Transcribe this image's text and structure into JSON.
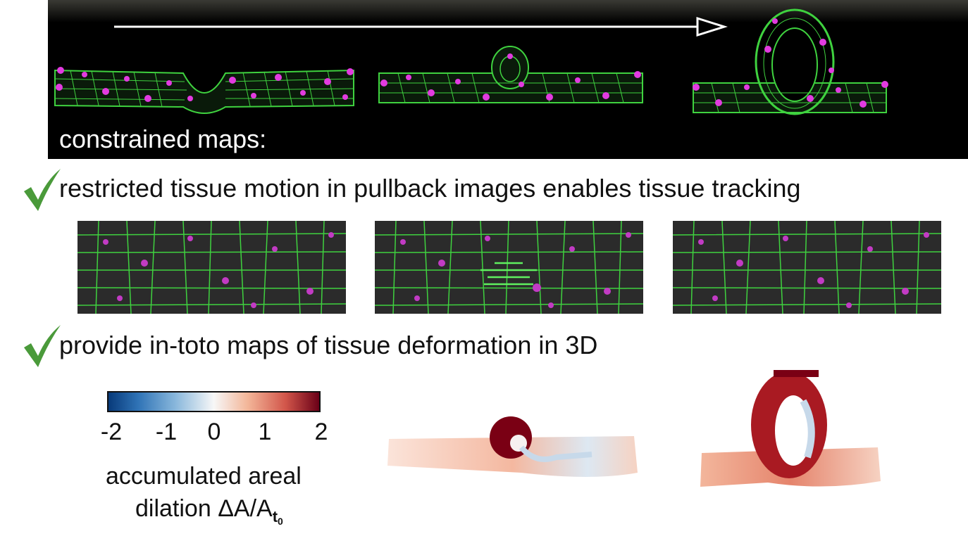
{
  "top_panel": {
    "label": "constrained maps:"
  },
  "claims": [
    {
      "text": "restricted tissue motion in pullback images enables tissue tracking"
    },
    {
      "text": "provide in-toto maps of tissue deformation in 3D"
    }
  ],
  "colorbar": {
    "ticks": [
      "-2",
      "-1",
      "0",
      "1",
      "2"
    ],
    "label_line1": "accumulated areal",
    "label_line2": "dilation ΔA/A",
    "label_sub": "t",
    "label_subsub": "0",
    "colors": [
      "#083a7a",
      "#f7f7f7",
      "#6a0017"
    ]
  },
  "colors": {
    "mesh_green": "#3fd23f",
    "nuclei_magenta": "#e23be0",
    "check_green": "#4a9a3a"
  }
}
